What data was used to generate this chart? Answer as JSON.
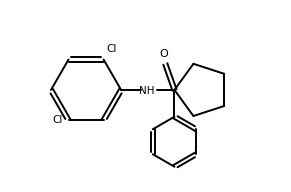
{
  "background_color": "#ffffff",
  "line_color": "#000000",
  "lw": 1.4,
  "fig_width": 2.91,
  "fig_height": 1.92,
  "dpi": 100,
  "xlim": [
    0.0,
    9.5
  ],
  "ylim": [
    0.3,
    6.5
  ]
}
